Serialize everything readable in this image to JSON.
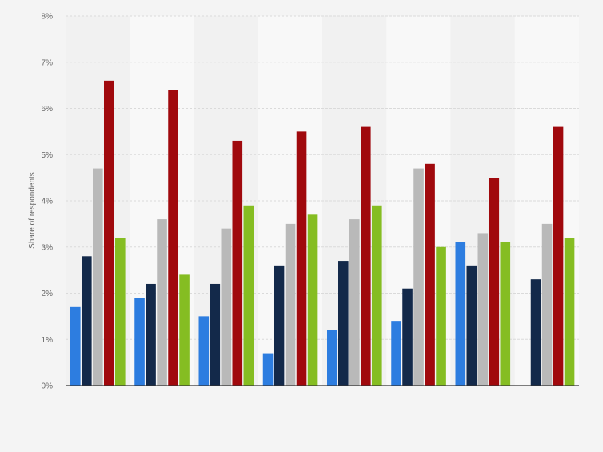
{
  "chart_data": {
    "type": "bar",
    "title": "",
    "xlabel": "",
    "ylabel": "Share of respondents",
    "ylim": [
      0,
      8
    ],
    "y_ticks": [
      0,
      1,
      2,
      3,
      4,
      5,
      6,
      7,
      8
    ],
    "y_tick_labels": [
      "0%",
      "1%",
      "2%",
      "3%",
      "4%",
      "5%",
      "6%",
      "7%",
      "8%"
    ],
    "grid": true,
    "legend": "none",
    "categories": [
      "",
      "",
      "",
      "",
      "",
      "",
      "",
      ""
    ],
    "series": [
      {
        "color": "#2d7de0",
        "values": [
          1.7,
          1.9,
          1.5,
          0.7,
          1.2,
          1.4,
          3.1,
          null
        ]
      },
      {
        "color": "#13294a",
        "values": [
          2.8,
          2.2,
          2.2,
          2.6,
          2.7,
          2.1,
          2.6,
          2.3
        ]
      },
      {
        "color": "#b9b9b9",
        "values": [
          4.7,
          3.6,
          3.4,
          3.5,
          3.6,
          4.7,
          3.3,
          3.5
        ]
      },
      {
        "color": "#a0090d",
        "values": [
          6.6,
          6.4,
          5.3,
          5.5,
          5.6,
          4.8,
          4.5,
          5.6
        ]
      },
      {
        "color": "#85bd22",
        "values": [
          3.2,
          2.4,
          3.9,
          3.7,
          3.9,
          3.0,
          3.1,
          3.2
        ]
      }
    ]
  }
}
